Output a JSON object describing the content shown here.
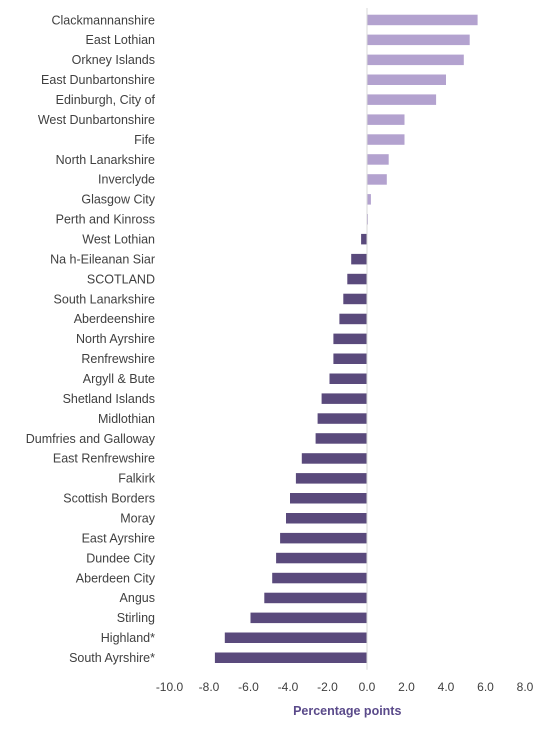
{
  "chart_data": {
    "type": "bar",
    "orientation": "horizontal",
    "categories": [
      "Clackmannanshire",
      "East Lothian",
      "Orkney Islands",
      "East Dunbartonshire",
      "Edinburgh, City of",
      "West Dunbartonshire",
      "Fife",
      "North Lanarkshire",
      "Inverclyde",
      "Glasgow City",
      "Perth and Kinross",
      "West Lothian",
      "Na h-Eileanan Siar",
      "SCOTLAND",
      "South Lanarkshire",
      "Aberdeenshire",
      "North Ayrshire",
      "Renfrewshire",
      "Argyll & Bute",
      "Shetland Islands",
      "Midlothian",
      "Dumfries and Galloway",
      "East Renfrewshire",
      "Falkirk",
      "Scottish Borders",
      "Moray",
      "East Ayrshire",
      "Dundee City",
      "Aberdeen City",
      "Angus",
      "Stirling",
      "Highland*",
      "South Ayrshire*"
    ],
    "values": [
      5.6,
      5.2,
      4.9,
      4.0,
      3.5,
      1.9,
      1.9,
      1.1,
      1.0,
      0.2,
      0.05,
      -0.3,
      -0.8,
      -1.0,
      -1.2,
      -1.4,
      -1.7,
      -1.7,
      -1.9,
      -2.3,
      -2.5,
      -2.6,
      -3.3,
      -3.6,
      -3.9,
      -4.1,
      -4.4,
      -4.6,
      -4.8,
      -5.2,
      -5.9,
      -7.2,
      -7.7
    ],
    "xticks": [
      "-10.0",
      "-8.0",
      "-6.0",
      "-4.0",
      "-2.0",
      "0.0",
      "2.0",
      "4.0",
      "6.0",
      "8.0"
    ],
    "xlim": [
      -10,
      8
    ],
    "xlabel": "Percentage points",
    "colors": {
      "positive": "#b3a2cf",
      "negative": "#5a4a7c",
      "axis_title": "#5a4a8a",
      "axis_line": "#d9d9d9"
    },
    "grid": false,
    "legend": false
  }
}
